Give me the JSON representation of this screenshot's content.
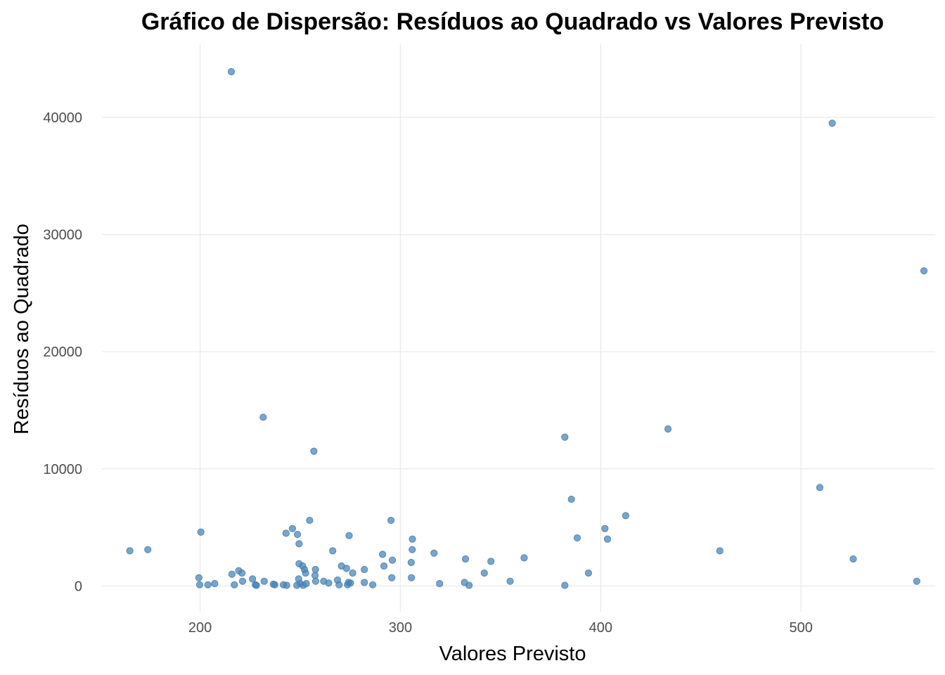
{
  "chart_data": {
    "type": "scatter",
    "title": "Gráfico de Dispersão: Resíduos ao Quadrado vs Valores Previsto",
    "xlabel": "Valores Previsto",
    "ylabel": "Resíduos ao Quadrado",
    "xlim": [
      151,
      567
    ],
    "ylim": [
      -2200,
      46300
    ],
    "xticks": [
      200,
      300,
      400,
      500
    ],
    "yticks": [
      0,
      10000,
      20000,
      30000,
      40000
    ],
    "grid": true,
    "legend": "none",
    "point_color": "#4682b4",
    "points": [
      {
        "x": 215.6,
        "y": 43900
      },
      {
        "x": 515.6,
        "y": 39500
      },
      {
        "x": 561.4,
        "y": 26900
      },
      {
        "x": 231.5,
        "y": 14400
      },
      {
        "x": 433.6,
        "y": 13400
      },
      {
        "x": 382.1,
        "y": 12700
      },
      {
        "x": 256.8,
        "y": 11500
      },
      {
        "x": 509.4,
        "y": 8400
      },
      {
        "x": 385.4,
        "y": 7400
      },
      {
        "x": 412.5,
        "y": 6000
      },
      {
        "x": 254.7,
        "y": 5600
      },
      {
        "x": 295.3,
        "y": 5600
      },
      {
        "x": 246.1,
        "y": 4900
      },
      {
        "x": 402.1,
        "y": 4900
      },
      {
        "x": 200.4,
        "y": 4600
      },
      {
        "x": 242.9,
        "y": 4500
      },
      {
        "x": 248.6,
        "y": 4400
      },
      {
        "x": 274.4,
        "y": 4300
      },
      {
        "x": 388.3,
        "y": 4100
      },
      {
        "x": 403.4,
        "y": 4000
      },
      {
        "x": 306.0,
        "y": 4000
      },
      {
        "x": 249.4,
        "y": 3600
      },
      {
        "x": 173.9,
        "y": 3100
      },
      {
        "x": 164.9,
        "y": 3000
      },
      {
        "x": 266.2,
        "y": 3000
      },
      {
        "x": 305.9,
        "y": 3100
      },
      {
        "x": 459.5,
        "y": 3000
      },
      {
        "x": 291.1,
        "y": 2700
      },
      {
        "x": 316.8,
        "y": 2800
      },
      {
        "x": 361.8,
        "y": 2400
      },
      {
        "x": 332.5,
        "y": 2300
      },
      {
        "x": 526.1,
        "y": 2300
      },
      {
        "x": 296.0,
        "y": 2200
      },
      {
        "x": 345.2,
        "y": 2100
      },
      {
        "x": 305.4,
        "y": 2000
      },
      {
        "x": 249.4,
        "y": 1900
      },
      {
        "x": 251.2,
        "y": 1700
      },
      {
        "x": 270.6,
        "y": 1700
      },
      {
        "x": 291.8,
        "y": 1700
      },
      {
        "x": 273.1,
        "y": 1500
      },
      {
        "x": 252.1,
        "y": 1400
      },
      {
        "x": 257.6,
        "y": 1400
      },
      {
        "x": 282.0,
        "y": 1400
      },
      {
        "x": 219.3,
        "y": 1300
      },
      {
        "x": 215.9,
        "y": 1000
      },
      {
        "x": 220.9,
        "y": 1100
      },
      {
        "x": 252.7,
        "y": 1100
      },
      {
        "x": 276.2,
        "y": 1100
      },
      {
        "x": 341.9,
        "y": 1100
      },
      {
        "x": 393.9,
        "y": 1100
      },
      {
        "x": 257.4,
        "y": 900
      },
      {
        "x": 199.4,
        "y": 700
      },
      {
        "x": 226.2,
        "y": 600
      },
      {
        "x": 249.2,
        "y": 600
      },
      {
        "x": 295.7,
        "y": 700
      },
      {
        "x": 305.5,
        "y": 700
      },
      {
        "x": 221.2,
        "y": 400
      },
      {
        "x": 232.0,
        "y": 400
      },
      {
        "x": 257.7,
        "y": 400
      },
      {
        "x": 261.7,
        "y": 400
      },
      {
        "x": 268.6,
        "y": 500
      },
      {
        "x": 282.0,
        "y": 300
      },
      {
        "x": 274.1,
        "y": 300
      },
      {
        "x": 332.0,
        "y": 300
      },
      {
        "x": 354.8,
        "y": 400
      },
      {
        "x": 557.8,
        "y": 400
      },
      {
        "x": 199.8,
        "y": 100
      },
      {
        "x": 203.9,
        "y": 100
      },
      {
        "x": 207.3,
        "y": 200
      },
      {
        "x": 217.1,
        "y": 100
      },
      {
        "x": 227.6,
        "y": 100
      },
      {
        "x": 228.1,
        "y": 50
      },
      {
        "x": 236.6,
        "y": 150
      },
      {
        "x": 237.3,
        "y": 100
      },
      {
        "x": 241.6,
        "y": 100
      },
      {
        "x": 243.2,
        "y": 50
      },
      {
        "x": 248.3,
        "y": 50
      },
      {
        "x": 250.0,
        "y": 200
      },
      {
        "x": 251.5,
        "y": 50
      },
      {
        "x": 253.0,
        "y": 200
      },
      {
        "x": 264.2,
        "y": 250
      },
      {
        "x": 269.4,
        "y": 100
      },
      {
        "x": 273.6,
        "y": 100
      },
      {
        "x": 275.1,
        "y": 250
      },
      {
        "x": 286.2,
        "y": 100
      },
      {
        "x": 319.6,
        "y": 200
      },
      {
        "x": 334.3,
        "y": 50
      },
      {
        "x": 382.1,
        "y": 50
      }
    ]
  }
}
